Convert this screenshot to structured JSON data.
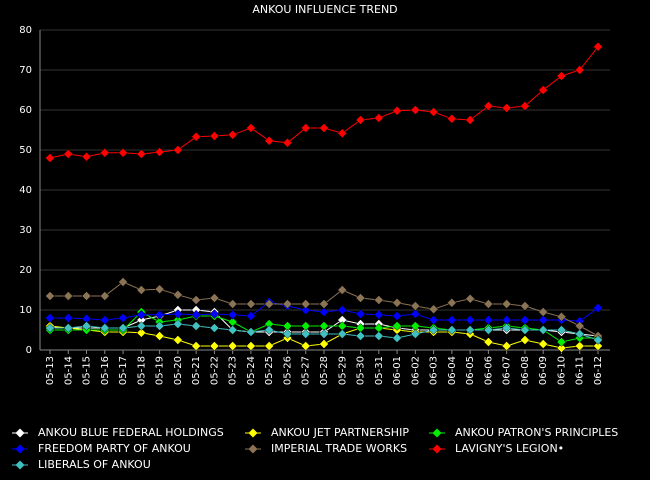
{
  "chart_data": {
    "type": "line",
    "title": "ANKOU INFLUENCE TREND",
    "categories": [
      "05-13",
      "05-14",
      "05-15",
      "05-16",
      "05-17",
      "05-18",
      "05-19",
      "05-20",
      "05-21",
      "05-22",
      "05-23",
      "05-24",
      "05-25",
      "05-26",
      "05-27",
      "05-28",
      "05-29",
      "05-30",
      "05-31",
      "06-01",
      "06-02",
      "06-03",
      "06-04",
      "06-05",
      "06-06",
      "06-07",
      "06-08",
      "06-09",
      "06-10",
      "06-11",
      "06-12"
    ],
    "ylim": [
      0,
      80
    ],
    "yticks": [
      0,
      10,
      20,
      30,
      40,
      50,
      60,
      70,
      80
    ],
    "grid": true,
    "series": [
      {
        "name": "ANKOU BLUE FEDERAL HOLDINGS",
        "color": "#ffffff",
        "values": [
          5.8,
          5.5,
          5.5,
          5.5,
          5.5,
          7.5,
          8.5,
          10,
          10,
          9.5,
          5,
          4.5,
          4.5,
          4.5,
          4.5,
          4.5,
          7.5,
          6.5,
          6.5,
          5.5,
          5,
          5,
          5,
          5,
          5,
          5,
          5,
          5,
          4.5,
          4,
          3.5
        ]
      },
      {
        "name": "ANKOU JET PARTNERSHIP",
        "color": "#ffff00",
        "values": [
          6,
          5.5,
          5,
          4.5,
          4.5,
          4.3,
          3.5,
          2.5,
          1,
          1,
          1,
          1,
          1,
          3,
          1,
          1.5,
          4,
          5.5,
          5.5,
          5,
          4.5,
          4.5,
          4.5,
          4,
          2,
          1,
          2.5,
          1.5,
          0.5,
          1,
          1
        ]
      },
      {
        "name": "ANKOU PATRON'S PRINCIPLES",
        "color": "#00ee00",
        "values": [
          5,
          5,
          5,
          5,
          5,
          9.5,
          7,
          7.5,
          8.5,
          8.5,
          7,
          4.5,
          6.5,
          6,
          6,
          6,
          6,
          5.5,
          5.5,
          6,
          6,
          5.5,
          5,
          5,
          5.5,
          6,
          5.5,
          5,
          2,
          3,
          3
        ]
      },
      {
        "name": "FREEDOM PARTY OF ANKOU",
        "color": "#0000ff",
        "values": [
          8,
          8,
          7.8,
          7.5,
          8,
          8.8,
          8.8,
          9,
          8.8,
          9,
          8.8,
          8.5,
          12,
          11,
          10,
          9.5,
          10,
          9,
          8.8,
          8.5,
          9,
          7.5,
          7.5,
          7.5,
          7.5,
          7.5,
          7.5,
          7.5,
          7.5,
          7.2,
          10.5
        ]
      },
      {
        "name": "IMPERIAL TRADE WORKS",
        "color": "#8b7355",
        "values": [
          13.5,
          13.5,
          13.5,
          13.5,
          17,
          15,
          15.2,
          13.8,
          12.5,
          13,
          11.5,
          11.5,
          11.5,
          11.5,
          11.5,
          11.5,
          15,
          13,
          12.5,
          11.8,
          11,
          10.2,
          11.8,
          12.8,
          11.5,
          11.5,
          11,
          9.5,
          8.3,
          6,
          3.5
        ]
      },
      {
        "name": "LAVIGNY'S LEGION•",
        "color": "#ff0000",
        "values": [
          48,
          49,
          48.3,
          49.3,
          49.3,
          49,
          49.5,
          50,
          53.3,
          53.5,
          53.8,
          55.5,
          52.3,
          51.8,
          55.5,
          55.5,
          54.2,
          57.5,
          58,
          59.8,
          60,
          59.5,
          57.8,
          57.5,
          61,
          60.5,
          61,
          65,
          68.5,
          70,
          75.8
        ]
      },
      {
        "name": "LIBERALS OF ANKOU",
        "color": "#40c0c0",
        "values": [
          5.5,
          5.5,
          6,
          5.5,
          5.5,
          6,
          6,
          6.5,
          6,
          5.5,
          5,
          4.5,
          5,
          4,
          4,
          4,
          4,
          3.5,
          3.5,
          3,
          4,
          5,
          5,
          5,
          5,
          5.5,
          5,
          5,
          5,
          4,
          2.5
        ]
      }
    ]
  }
}
